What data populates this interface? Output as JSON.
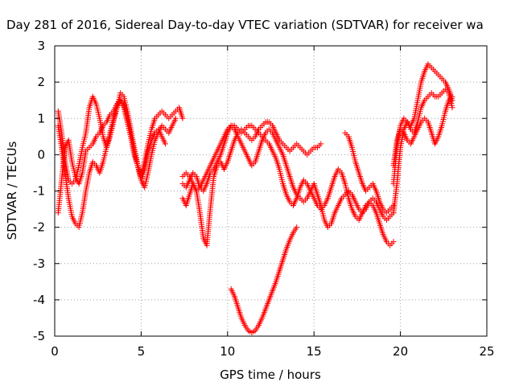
{
  "chart_data": {
    "type": "scatter",
    "title": "Day 281 of 2016, Sidereal Day-to-day VTEC variation (SDTVAR) for receiver wa",
    "xlabel": "GPS time / hours",
    "ylabel": "SDTVAR / TECUs",
    "xlim": [
      0,
      25
    ],
    "ylim": [
      -5,
      3
    ],
    "xticks": [
      "0",
      "5",
      "10",
      "15",
      "20",
      "25"
    ],
    "yticks": [
      "-5",
      "-4",
      "-3",
      "-2",
      "-1",
      "0",
      "1",
      "2",
      "3"
    ],
    "grid": true,
    "marker": "+",
    "color": "#ff0000",
    "series": [
      {
        "x": [
          0.2,
          0.4,
          0.6,
          0.8,
          1.0,
          1.2,
          1.4,
          1.6,
          1.8,
          2.0,
          2.2,
          2.4,
          2.6,
          2.8,
          3.0,
          3.2,
          3.4,
          3.6,
          3.8,
          4.0,
          4.2,
          4.4,
          4.6,
          4.8,
          5.0,
          5.2,
          5.4,
          5.6,
          5.8,
          6.0,
          6.2,
          6.4,
          6.6,
          6.8,
          7.0,
          7.2,
          7.4
        ],
        "y": [
          -1.6,
          -0.7,
          0.2,
          0.4,
          -0.2,
          -0.6,
          -0.8,
          -0.5,
          0.1,
          0.2,
          0.3,
          0.5,
          0.6,
          0.8,
          0.9,
          1.1,
          1.2,
          1.4,
          1.5,
          1.4,
          1.0,
          0.5,
          0.0,
          -0.3,
          -0.6,
          -0.2,
          0.3,
          0.7,
          1.0,
          1.1,
          1.2,
          1.1,
          1.0,
          1.1,
          1.2,
          1.3,
          1.0
        ]
      },
      {
        "x": [
          0.2,
          0.4,
          0.6,
          0.8,
          1.0,
          1.2,
          1.4,
          1.6,
          1.8,
          2.0,
          2.2,
          2.4,
          2.6,
          2.8,
          3.0,
          3.2,
          3.4,
          3.6,
          3.8,
          4.0,
          4.2,
          4.4,
          4.6,
          4.8,
          5.0,
          5.2,
          5.4,
          5.6,
          5.8,
          6.0,
          6.2,
          6.4
        ],
        "y": [
          1.2,
          0.6,
          -0.2,
          -0.7,
          -0.8,
          -0.7,
          -0.3,
          0.2,
          0.6,
          1.3,
          1.6,
          1.4,
          1.0,
          0.5,
          0.2,
          0.5,
          0.9,
          1.3,
          1.7,
          1.6,
          1.2,
          0.7,
          0.2,
          -0.3,
          -0.7,
          -0.4,
          0.1,
          0.4,
          0.6,
          0.7,
          0.5,
          0.3
        ]
      },
      {
        "x": [
          0.2,
          0.4,
          0.6,
          0.8,
          1.0,
          1.2,
          1.4,
          1.6,
          1.8,
          2.0,
          2.2,
          2.4,
          2.6,
          2.8,
          3.0,
          3.2,
          3.4,
          3.6,
          3.8,
          4.0,
          4.2,
          4.4,
          4.6,
          4.8,
          5.0,
          5.2,
          5.4,
          5.6,
          5.8,
          6.0,
          6.2,
          6.4,
          6.6,
          6.8,
          7.0
        ],
        "y": [
          0.8,
          0.2,
          -0.5,
          -1.2,
          -1.7,
          -1.9,
          -2.0,
          -1.6,
          -1.0,
          -0.5,
          -0.2,
          -0.3,
          -0.5,
          -0.2,
          0.2,
          0.6,
          1.0,
          1.3,
          1.5,
          1.3,
          0.9,
          0.5,
          0.1,
          -0.3,
          -0.7,
          -0.9,
          -0.5,
          0.0,
          0.4,
          0.6,
          0.8,
          0.7,
          0.6,
          0.8,
          1.0
        ]
      },
      {
        "x": [
          7.4,
          7.6,
          7.8,
          8.0,
          8.2,
          8.4,
          8.6,
          8.8,
          9.0,
          9.2,
          9.4,
          9.6,
          9.8,
          10.0,
          10.2,
          10.4,
          10.6,
          10.8,
          11.0,
          11.2,
          11.4,
          11.6,
          11.8,
          12.0,
          12.2,
          12.4,
          12.6,
          12.8,
          13.0,
          13.2,
          13.4,
          13.6,
          13.8,
          14.0,
          14.2,
          14.4,
          14.6,
          14.8,
          15.0,
          15.2,
          15.4
        ],
        "y": [
          -1.2,
          -1.4,
          -1.1,
          -0.8,
          -1.0,
          -1.6,
          -2.3,
          -2.5,
          -1.5,
          -0.6,
          -0.3,
          -0.2,
          -0.4,
          -0.2,
          0.1,
          0.4,
          0.6,
          0.7,
          0.6,
          0.5,
          0.4,
          0.5,
          0.7,
          0.8,
          0.9,
          0.9,
          0.8,
          0.6,
          0.4,
          0.3,
          0.2,
          0.1,
          0.2,
          0.3,
          0.2,
          0.1,
          0.0,
          0.1,
          0.2,
          0.2,
          0.3
        ]
      },
      {
        "x": [
          7.4,
          7.6,
          7.8,
          8.0,
          8.2,
          8.4,
          8.6,
          8.8,
          9.0,
          9.2,
          9.4,
          9.6,
          9.8,
          10.0,
          10.2,
          10.4,
          10.6,
          10.8,
          11.0,
          11.2,
          11.4,
          11.6,
          11.8,
          12.0,
          12.2,
          12.4,
          12.6,
          12.8,
          13.0,
          13.2,
          13.4,
          13.6,
          13.8,
          14.0,
          14.2,
          14.4,
          14.6,
          14.8,
          15.0,
          15.2,
          15.4,
          15.6,
          15.8,
          16.0,
          16.2,
          16.4,
          16.6,
          16.8,
          17.0,
          17.2,
          17.4,
          17.6,
          17.8,
          18.0,
          18.2,
          18.4,
          18.6,
          18.8,
          19.0,
          19.2,
          19.4,
          19.6
        ],
        "y": [
          -0.8,
          -0.9,
          -0.7,
          -0.5,
          -0.6,
          -0.9,
          -1.0,
          -0.8,
          -0.5,
          -0.4,
          -0.2,
          0.0,
          0.3,
          0.6,
          0.8,
          0.7,
          0.5,
          0.3,
          0.1,
          -0.1,
          -0.3,
          -0.2,
          0.1,
          0.4,
          0.6,
          0.7,
          0.6,
          0.4,
          0.2,
          0.0,
          -0.3,
          -0.6,
          -0.9,
          -1.1,
          -1.2,
          -1.3,
          -1.2,
          -1.0,
          -0.8,
          -1.1,
          -1.4,
          -1.8,
          -2.0,
          -1.9,
          -1.6,
          -1.4,
          -1.2,
          -1.1,
          -1.0,
          -1.1,
          -1.3,
          -1.5,
          -1.6,
          -1.5,
          -1.3,
          -1.2,
          -1.3,
          -1.5,
          -1.7,
          -1.8,
          -1.7,
          -1.6
        ]
      },
      {
        "x": [
          7.4,
          7.6,
          7.8,
          8.0,
          8.2,
          8.4,
          8.6,
          8.8,
          9.0,
          9.2,
          9.4,
          9.6,
          9.8,
          10.0,
          10.2,
          10.4,
          10.6,
          10.8,
          11.0,
          11.2,
          11.4,
          11.6,
          11.8,
          12.0,
          12.2,
          12.4,
          12.6,
          12.8,
          13.0,
          13.2,
          13.4,
          13.6,
          13.8,
          14.0,
          14.2,
          14.4,
          14.6,
          14.8,
          15.0,
          15.2,
          15.4,
          15.6,
          15.8,
          16.0,
          16.2,
          16.4,
          16.6,
          16.8,
          17.0,
          17.2,
          17.4,
          17.6,
          17.8,
          18.0,
          18.2,
          18.4,
          18.6,
          18.8,
          19.0,
          19.2,
          19.4,
          19.6
        ],
        "y": [
          -0.6,
          -0.5,
          -0.6,
          -0.8,
          -1.0,
          -0.9,
          -0.7,
          -0.5,
          -0.3,
          -0.1,
          0.1,
          0.3,
          0.5,
          0.7,
          0.8,
          0.8,
          0.7,
          0.6,
          0.7,
          0.8,
          0.8,
          0.7,
          0.6,
          0.5,
          0.4,
          0.3,
          0.1,
          -0.1,
          -0.4,
          -0.8,
          -1.1,
          -1.3,
          -1.4,
          -1.2,
          -0.9,
          -0.7,
          -0.8,
          -1.0,
          -1.2,
          -1.4,
          -1.5,
          -1.4,
          -1.2,
          -0.9,
          -0.6,
          -0.4,
          -0.5,
          -0.8,
          -1.2,
          -1.5,
          -1.7,
          -1.8,
          -1.6,
          -1.4,
          -1.3,
          -1.4,
          -1.6,
          -1.9,
          -2.2,
          -2.4,
          -2.5,
          -2.4
        ]
      },
      {
        "x": [
          10.2,
          10.4,
          10.6,
          10.8,
          11.0,
          11.2,
          11.4,
          11.6,
          11.8,
          12.0,
          12.2,
          12.4,
          12.6,
          12.8,
          13.0,
          13.2,
          13.4,
          13.6,
          13.8,
          14.0
        ],
        "y": [
          -3.7,
          -3.9,
          -4.2,
          -4.5,
          -4.7,
          -4.85,
          -4.9,
          -4.85,
          -4.7,
          -4.5,
          -4.25,
          -4.0,
          -3.75,
          -3.5,
          -3.2,
          -2.9,
          -2.6,
          -2.35,
          -2.15,
          -2.0
        ]
      },
      {
        "x": [
          16.8,
          17.0,
          17.2,
          17.4,
          17.6,
          17.8,
          18.0,
          18.2,
          18.4,
          18.6,
          18.8,
          19.0,
          19.2,
          19.4,
          19.6
        ],
        "y": [
          0.6,
          0.5,
          0.2,
          -0.2,
          -0.5,
          -0.8,
          -1.0,
          -0.9,
          -0.8,
          -1.0,
          -1.3,
          -1.5,
          -1.6,
          -1.5,
          -1.4
        ]
      },
      {
        "x": [
          19.6,
          19.8,
          20.0,
          20.2,
          20.4,
          20.6,
          20.8,
          21.0,
          21.2,
          21.4,
          21.6,
          21.8,
          22.0,
          22.2,
          22.4,
          22.6,
          22.8,
          23.0
        ],
        "y": [
          -1.6,
          -0.8,
          0.2,
          0.7,
          0.9,
          0.8,
          1.0,
          1.5,
          2.0,
          2.3,
          2.5,
          2.4,
          2.3,
          2.2,
          2.1,
          2.0,
          1.8,
          1.5
        ]
      },
      {
        "x": [
          19.6,
          19.8,
          20.0,
          20.2,
          20.4,
          20.6,
          20.8,
          21.0,
          21.2,
          21.4,
          21.6,
          21.8,
          22.0,
          22.2,
          22.4,
          22.6,
          22.8,
          23.0
        ],
        "y": [
          -0.8,
          0.2,
          0.8,
          1.0,
          0.9,
          0.7,
          0.6,
          0.9,
          1.3,
          1.5,
          1.6,
          1.7,
          1.6,
          1.6,
          1.7,
          1.8,
          1.7,
          1.3
        ]
      },
      {
        "x": [
          19.6,
          19.8,
          20.0,
          20.2,
          20.4,
          20.6,
          20.8,
          21.0,
          21.2,
          21.4,
          21.6,
          21.8,
          22.0,
          22.2,
          22.4,
          22.6,
          22.8,
          23.0
        ],
        "y": [
          -0.3,
          0.4,
          0.7,
          0.6,
          0.4,
          0.3,
          0.5,
          0.7,
          0.9,
          1.0,
          0.9,
          0.6,
          0.3,
          0.5,
          0.8,
          1.2,
          1.5,
          1.6
        ]
      }
    ]
  }
}
